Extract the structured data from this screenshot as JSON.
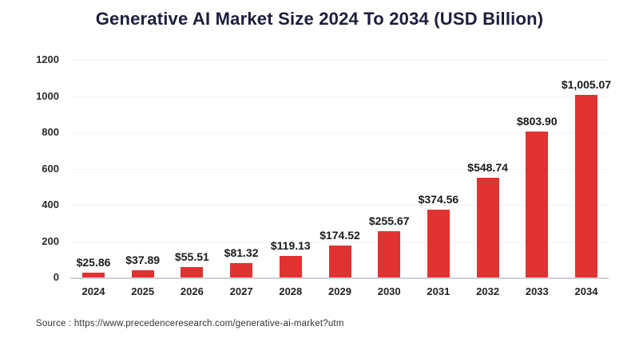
{
  "title": "Generative AI Market Size 2024 To 2034 (USD Billion)",
  "source": "Source : https://www.precedenceresearch.com/generative-ai-market?utm",
  "colors": {
    "bar": "#e13232",
    "title": "#1d1d3d",
    "axis_line": "#ccd1de",
    "gridline": "#f3f3f6",
    "value_label": "#1a1a1a"
  },
  "chart_data": {
    "type": "bar",
    "title": "Generative AI Market Size 2024 To 2034 (USD Billion)",
    "categories": [
      "2024",
      "2025",
      "2026",
      "2027",
      "2028",
      "2029",
      "2030",
      "2031",
      "2032",
      "2033",
      "2034"
    ],
    "values": [
      25.86,
      37.89,
      55.51,
      81.32,
      119.13,
      174.52,
      255.67,
      374.56,
      548.74,
      803.9,
      1005.07
    ],
    "value_labels": [
      "$25.86",
      "$37.89",
      "$55.51",
      "$81.32",
      "$119.13",
      "$174.52",
      "$255.67",
      "$374.56",
      "$548.74",
      "$803.90",
      "$1,005.07"
    ],
    "xlabel": "",
    "ylabel": "",
    "ylim": [
      0,
      1200
    ],
    "yticks": [
      0,
      200,
      400,
      600,
      800,
      1000,
      1200
    ],
    "grid": true,
    "legend": false,
    "bar_color": "#e13232"
  }
}
